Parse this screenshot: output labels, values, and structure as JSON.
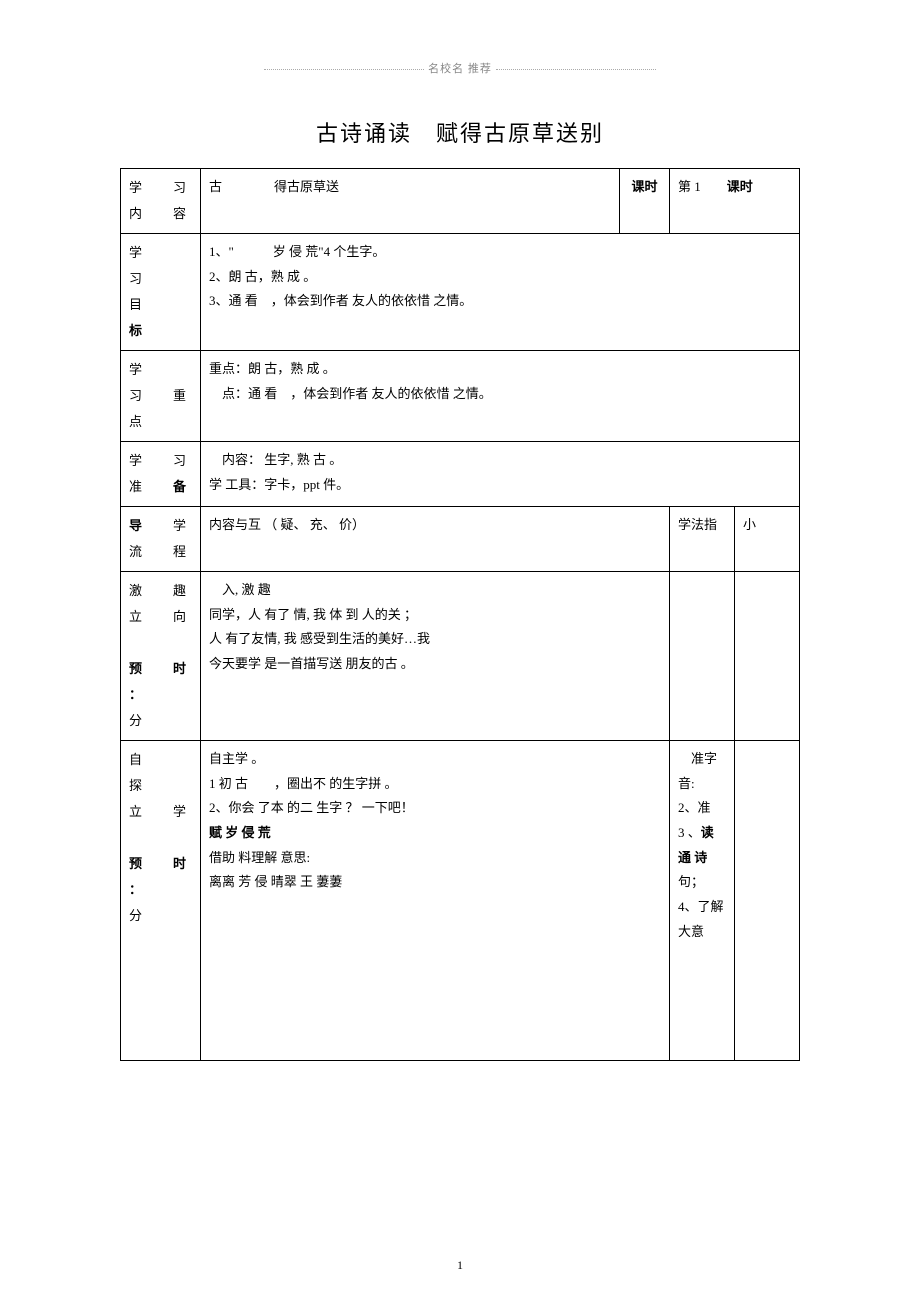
{
  "header_deco": "名校名 推荐",
  "title": "古诗诵读　赋得古原草送别",
  "labels": {
    "content": "学　习\n内　容",
    "keshi": "课时",
    "goal": "学\n习\n目\n标",
    "keypoint": "学　　习\n重 点",
    "prepare": "学　习\n准　备",
    "flow": "导　学\n流　程",
    "method_head": "学法指",
    "tip_head": "小",
    "spark": "激　趣\n立　向\n\n预 时 ：\n分",
    "explore": "自　　探\n立　学\n\n预 时 ：\n分"
  },
  "content_value": "古　　　　得古原草送",
  "keshi_value": "第 1　　课时",
  "goal_text": "1、\"　　　岁 侵 荒\"4 个生字。\n2、朗 古，熟 成 。\n3、通 看　，体会到作者 友人的依依惜 之情。",
  "keypoint_text": "重点：朗 古，熟 成 。\n　点：通 看　，体会到作者 友人的依依惜 之情。",
  "prepare_text": "　内容：  生字, 熟 古 。\n学 工具：字卡，ppt 件。",
  "flow_text": "内容与互 （ 疑、 充、 价）",
  "spark_text": "　入, 激 趣\n同学，人 有了 情,  我 体 到 人的关 ；\n人 有了友情,  我 感受到生活的美好…我\n今天要学 是一首描写送 朋友的古 。",
  "explore_text": "自主学 。\n1 初 古　　，圈出不 的生字拼 。\n2、你会 了本 的二 生字  ？  一下吧！\n赋 岁 侵 荒\n借助 料理解  意思:\n离离  芳 侵 晴翠 王  萋萋",
  "explore_bold_line": "赋 岁 侵 荒",
  "method_text": "　准字音:\n2、准\n3 、读 通 诗\n句；\n4、了解大意",
  "page_number": "1"
}
